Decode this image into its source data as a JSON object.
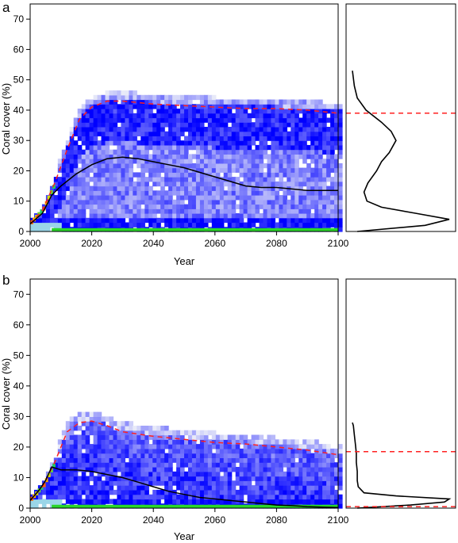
{
  "panels": [
    {
      "label": "a"
    },
    {
      "label": "b"
    }
  ],
  "chart_data": [
    {
      "type": "heatmap",
      "panel": "a",
      "xlabel": "Year",
      "ylabel": "Coral cover (%)",
      "xlim": [
        2000,
        2100
      ],
      "ylim": [
        0,
        75
      ],
      "xticks": [
        2000,
        2020,
        2040,
        2060,
        2080,
        2100
      ],
      "yticks": [
        0,
        10,
        20,
        30,
        40,
        50,
        60,
        70
      ],
      "colors": {
        "heat_high": "#0000ff",
        "heat_low": "#e8eaf8",
        "floor": "#2ad62a",
        "mean_line": "#000000",
        "upper_line": "#ff2020"
      },
      "series": [
        {
          "values_x": [
            2000,
            2004,
            2007,
            2010,
            2015,
            2020,
            2025,
            2030,
            2035,
            2040,
            2045,
            2050,
            2055,
            2060,
            2065,
            2070,
            2075,
            2080,
            2085,
            2090,
            2095,
            2100
          ],
          "values_y": [
            2.5,
            6,
            12,
            15,
            19,
            22,
            24,
            24.5,
            24,
            23,
            22,
            21,
            19.5,
            18,
            16.5,
            15,
            14.5,
            14.5,
            14,
            13.5,
            13.5,
            13.5
          ],
          "style": "solid"
        },
        {
          "values_x": [
            2000,
            2004,
            2008,
            2012,
            2016,
            2020,
            2025,
            2030,
            2040,
            2050,
            2060,
            2070,
            2080,
            2090,
            2100
          ],
          "values_y": [
            2.5,
            7,
            16,
            27,
            37,
            41,
            43,
            43,
            42,
            41.5,
            41,
            40.5,
            40.5,
            40,
            39
          ],
          "style": "dashed"
        }
      ],
      "density_side": {
        "y": [
          0,
          2,
          4,
          6,
          8,
          10,
          13,
          16,
          20,
          23,
          26,
          30,
          33,
          36,
          40,
          44,
          48,
          53
        ],
        "density": [
          0.05,
          0.75,
          1.0,
          0.65,
          0.3,
          0.15,
          0.12,
          0.16,
          0.25,
          0.3,
          0.38,
          0.45,
          0.4,
          0.3,
          0.14,
          0.05,
          0.02,
          0.0
        ],
        "reference_line": 39
      }
    },
    {
      "type": "heatmap",
      "panel": "b",
      "xlabel": "Year",
      "ylabel": "Coral cover (%)",
      "xlim": [
        2000,
        2100
      ],
      "ylim": [
        0,
        75
      ],
      "xticks": [
        2000,
        2020,
        2040,
        2060,
        2080,
        2100
      ],
      "yticks": [
        0,
        10,
        20,
        30,
        40,
        50,
        60,
        70
      ],
      "colors": {
        "heat_high": "#0000ff",
        "heat_low": "#e8eaf8",
        "floor": "#2ad62a",
        "mean_line": "#000000",
        "upper_line": "#ff2020"
      },
      "series": [
        {
          "values_x": [
            2000,
            2003,
            2005,
            2007,
            2010,
            2015,
            2020,
            2025,
            2030,
            2035,
            2040,
            2045,
            2050,
            2055,
            2060,
            2065,
            2070,
            2075,
            2080,
            2085,
            2090,
            2095,
            2100
          ],
          "values_y": [
            2.5,
            6,
            9,
            13.5,
            12.5,
            12.5,
            12,
            11,
            10,
            8.5,
            7,
            5.5,
            4.5,
            3.5,
            3,
            2.5,
            2,
            1.5,
            1,
            0.8,
            0.5,
            0.3,
            0.2
          ],
          "style": "solid"
        },
        {
          "values_x": [
            2000,
            2004,
            2008,
            2012,
            2016,
            2020,
            2025,
            2030,
            2040,
            2050,
            2060,
            2070,
            2080,
            2090,
            2100
          ],
          "values_y": [
            2.5,
            7,
            15,
            25,
            28,
            28.5,
            27,
            25,
            23.5,
            22.5,
            21.5,
            21,
            20,
            19,
            17.5
          ],
          "style": "dashed"
        }
      ],
      "density_side": {
        "y": [
          0,
          1,
          2,
          3,
          4,
          5,
          7,
          9,
          12,
          15,
          18,
          21,
          24,
          27,
          28
        ],
        "density": [
          0.05,
          0.6,
          0.95,
          1.0,
          0.45,
          0.12,
          0.06,
          0.05,
          0.05,
          0.04,
          0.04,
          0.03,
          0.02,
          0.01,
          0.0
        ],
        "reference_lines": [
          18.5,
          0.5
        ]
      }
    }
  ]
}
